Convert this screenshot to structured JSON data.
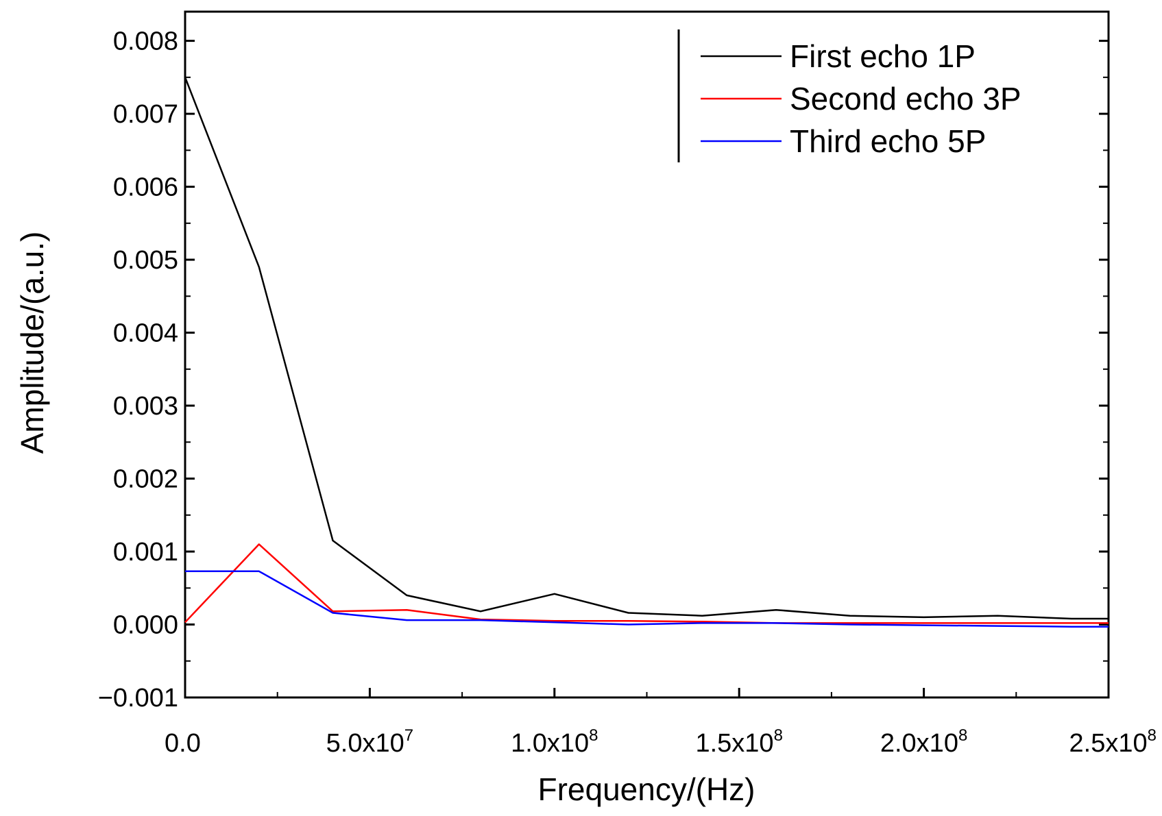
{
  "chart_data": {
    "type": "line",
    "title": "",
    "xlabel": "Frequency/(Hz)",
    "ylabel": "Amplitude/(a.u.)",
    "xlim": [
      0,
      250000000
    ],
    "ylim": [
      -0.001,
      0.0084
    ],
    "x_ticks": [
      {
        "value": 0,
        "mantissa": "0.0",
        "exp": ""
      },
      {
        "value": 50000000,
        "mantissa": "5.0x10",
        "exp": "7"
      },
      {
        "value": 100000000,
        "mantissa": "1.0x10",
        "exp": "8"
      },
      {
        "value": 150000000,
        "mantissa": "1.5x10",
        "exp": "8"
      },
      {
        "value": 200000000,
        "mantissa": "2.0x10",
        "exp": "8"
      },
      {
        "value": 250000000,
        "mantissa": "2.5x10",
        "exp": "8"
      }
    ],
    "y_ticks": [
      {
        "value": -0.001,
        "label": "−0.001"
      },
      {
        "value": 0.0,
        "label": "0.000"
      },
      {
        "value": 0.001,
        "label": "0.001"
      },
      {
        "value": 0.002,
        "label": "0.002"
      },
      {
        "value": 0.003,
        "label": "0.003"
      },
      {
        "value": 0.004,
        "label": "0.004"
      },
      {
        "value": 0.005,
        "label": "0.005"
      },
      {
        "value": 0.006,
        "label": "0.006"
      },
      {
        "value": 0.007,
        "label": "0.007"
      },
      {
        "value": 0.008,
        "label": "0.008"
      }
    ],
    "x": [
      0,
      20000000,
      40000000,
      60000000,
      80000000,
      100000000,
      120000000,
      140000000,
      160000000,
      180000000,
      200000000,
      220000000,
      240000000,
      250000000
    ],
    "series": [
      {
        "name": "First echo 1P",
        "color": "#000000",
        "values": [
          0.0075,
          0.0049,
          0.00115,
          0.0004,
          0.00018,
          0.00042,
          0.00016,
          0.00012,
          0.0002,
          0.00012,
          0.0001,
          0.00012,
          8e-05,
          8e-05
        ]
      },
      {
        "name": "Second echo 3P",
        "color": "#ff0000",
        "values": [
          3e-05,
          0.0011,
          0.00018,
          0.0002,
          7e-05,
          5e-05,
          5e-05,
          4e-05,
          2e-05,
          2e-05,
          2e-05,
          2e-05,
          2e-05,
          2e-05
        ]
      },
      {
        "name": "Third echo 5P",
        "color": "#0000ff",
        "values": [
          0.00073,
          0.00073,
          0.00016,
          6e-05,
          6e-05,
          3e-05,
          0.0,
          2e-05,
          2e-05,
          0.0,
          -1e-05,
          -2e-05,
          -3e-05,
          -3e-05
        ]
      }
    ],
    "legend_position": "top-right",
    "grid": false
  }
}
